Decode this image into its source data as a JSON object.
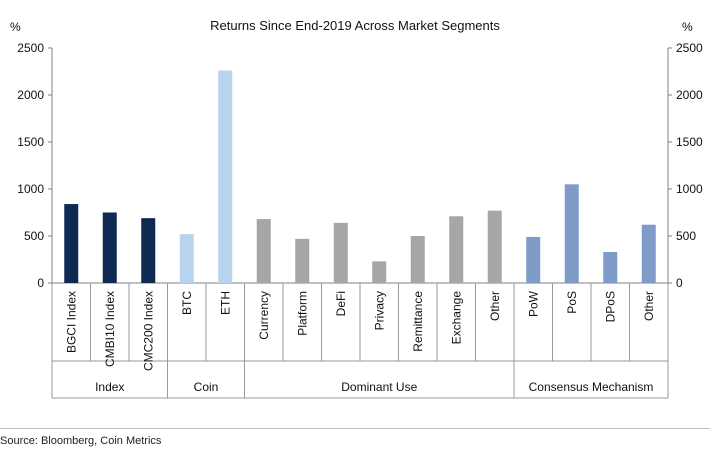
{
  "unit_left": "%",
  "unit_right": "%",
  "source": "Source: Bloomberg, Coin Metrics",
  "colors": {
    "index": "#0e2a52",
    "coin": "#b8d3ee",
    "dominant_use": "#a6a6a6",
    "consensus": "#7f9cc8"
  },
  "chart_data": {
    "type": "bar",
    "title": "Returns Since End-2019 Across Market Segments",
    "ylabel": "%",
    "ylim": [
      0,
      2500
    ],
    "yticks": [
      0,
      500,
      1000,
      1500,
      2000,
      2500
    ],
    "dual_axis_mirror": true,
    "categories": [
      "BGCI Index",
      "CMBI10 Index",
      "CMC200 Index",
      "BTC",
      "ETH",
      "Currency",
      "Platform",
      "DeFi",
      "Privacy",
      "Remittance",
      "Exchange",
      "Other",
      "PoW",
      "PoS",
      "DPoS",
      "Other"
    ],
    "values": [
      840,
      750,
      690,
      520,
      2260,
      680,
      470,
      640,
      230,
      500,
      710,
      770,
      490,
      1050,
      330,
      620
    ],
    "groups": [
      {
        "name": "Index",
        "count": 3,
        "color_key": "index"
      },
      {
        "name": "Coin",
        "count": 2,
        "color_key": "coin"
      },
      {
        "name": "Dominant Use",
        "count": 7,
        "color_key": "dominant_use"
      },
      {
        "name": "Consensus Mechanism",
        "count": 4,
        "color_key": "consensus"
      }
    ],
    "grid": false,
    "legend": "none"
  }
}
